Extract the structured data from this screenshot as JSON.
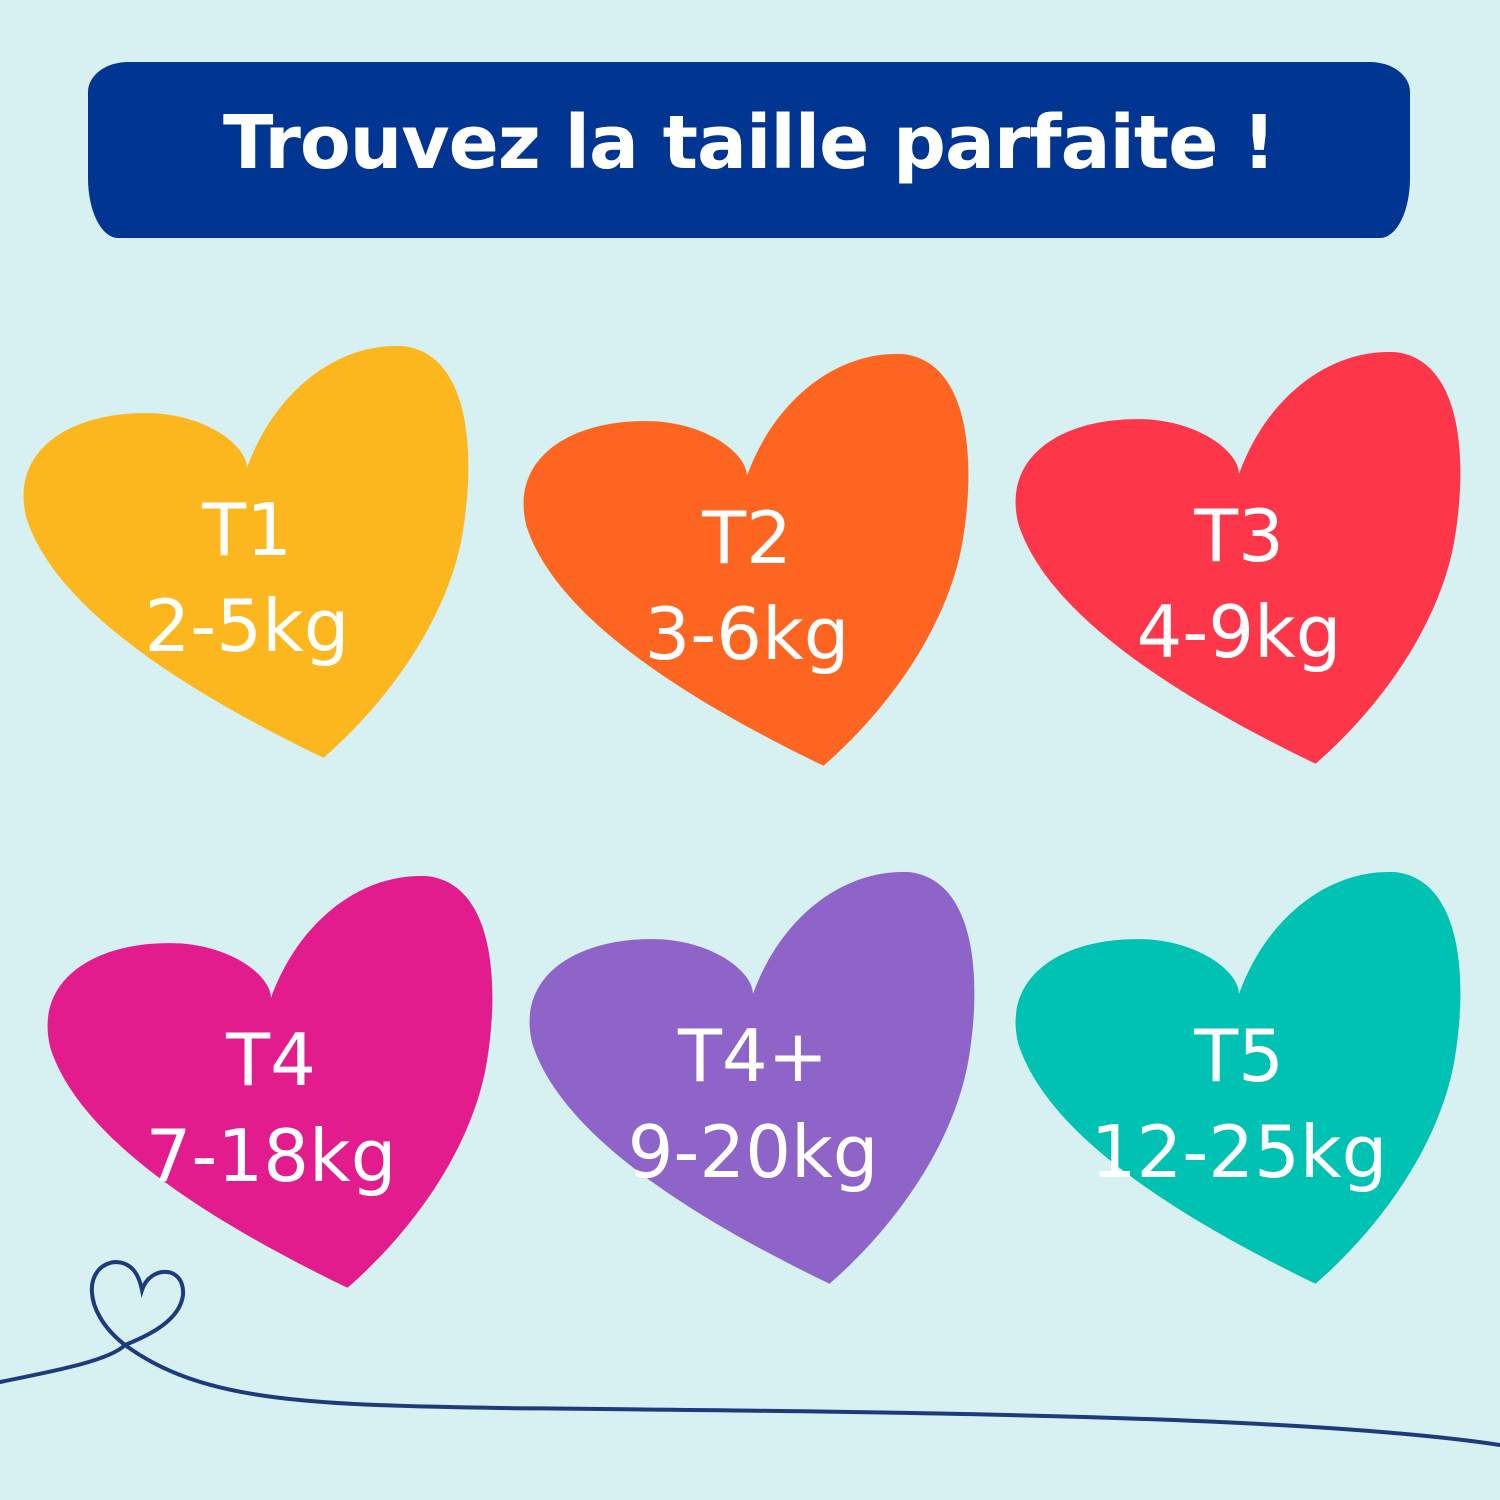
{
  "header": {
    "title": "Trouvez la taille parfaite !",
    "color": "#003591"
  },
  "sizes": [
    {
      "label": "T1",
      "weight": "2-5kg",
      "color": "#fdb71e"
    },
    {
      "label": "T2",
      "weight": "3-6kg",
      "color": "#fd6520"
    },
    {
      "label": "T3",
      "weight": "4-9kg",
      "color": "#fd364a"
    },
    {
      "label": "T4",
      "weight": "7-18kg",
      "color": "#e31c8e"
    },
    {
      "label": "T4+",
      "weight": "9-20kg",
      "color": "#8e64c9"
    },
    {
      "label": "T5",
      "weight": "12-25kg",
      "color": "#00c2b2"
    }
  ],
  "background": "#d7f0f1"
}
